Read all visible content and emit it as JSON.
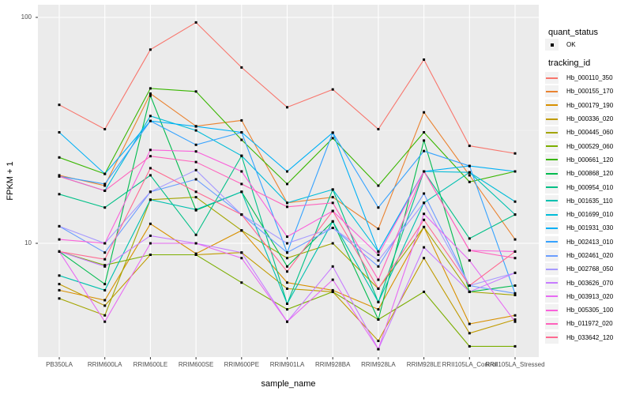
{
  "chart_data": {
    "type": "line",
    "title": "",
    "xlabel": "sample_name",
    "ylabel": "FPKM + 1",
    "y_scale": "log10",
    "y_ticks": [
      10,
      100
    ],
    "y_minor_ticks": [
      31.62
    ],
    "ylim": [
      3.1,
      114
    ],
    "grid": true,
    "panel_bg": "#EBEBEB",
    "grid_color": "#FFFFFF",
    "legend_position": "right",
    "marker": {
      "shape": "filled-square",
      "color": "#000000",
      "meaning": "quant_status OK"
    },
    "categories": [
      "PB350LA",
      "RRIM600LA",
      "RRIM600LE",
      "RRIM600SE",
      "RRIM600PE",
      "RRIM901LA",
      "RRIM928BA",
      "RRIM928LA",
      "RRIM928LE",
      "RRII105LA_Control",
      "RRII105LA_Stressed"
    ],
    "series": [
      {
        "name": "Hb_000110_350",
        "color": "#F8766D",
        "values": [
          41,
          32,
          72,
          95,
          60,
          40,
          48,
          32,
          65,
          27,
          25
        ]
      },
      {
        "name": "Hb_000155_170",
        "color": "#EA8331",
        "values": [
          20,
          18,
          46,
          33,
          35,
          15.1,
          16,
          11.6,
          38,
          20,
          10.4
        ]
      },
      {
        "name": "Hb_000179_190",
        "color": "#D89000",
        "values": [
          6.2,
          5.6,
          12.2,
          9.0,
          11.4,
          6.7,
          6.2,
          5.1,
          11.8,
          4.4,
          4.8
        ]
      },
      {
        "name": "Hb_000336_020",
        "color": "#C09B00",
        "values": [
          6.6,
          5.3,
          8.9,
          8.9,
          9.1,
          6.3,
          6.1,
          3.7,
          8.6,
          4.0,
          4.6
        ]
      },
      {
        "name": "Hb_000445_060",
        "color": "#A3A500",
        "values": [
          5.7,
          4.8,
          15.6,
          16.0,
          11.4,
          8.6,
          10.0,
          6.3,
          11.8,
          6.1,
          5.9
        ]
      },
      {
        "name": "Hb_000529_060",
        "color": "#7CAE00",
        "values": [
          9.2,
          8.0,
          8.9,
          8.9,
          6.7,
          5.1,
          6.1,
          4.6,
          6.1,
          3.5,
          3.5
        ]
      },
      {
        "name": "Hb_000661_120",
        "color": "#39B600",
        "values": [
          24,
          20.3,
          48.5,
          47,
          28.7,
          18.3,
          29.2,
          18,
          31,
          18.7,
          20.8
        ]
      },
      {
        "name": "Hb_000868_120",
        "color": "#00BB4E",
        "values": [
          9.2,
          6.6,
          45,
          14,
          16.9,
          7.9,
          12.5,
          4.6,
          28.5,
          6.1,
          6.5
        ]
      },
      {
        "name": "Hb_000954_010",
        "color": "#00C087",
        "values": [
          16.5,
          14.4,
          20,
          10.9,
          24.4,
          5.4,
          17.3,
          5.5,
          20.8,
          10.5,
          13.4
        ]
      },
      {
        "name": "Hb_001635_110",
        "color": "#00C0AF",
        "values": [
          7.2,
          6.2,
          15.6,
          14.1,
          16.9,
          5.4,
          12.5,
          5.5,
          15.1,
          20.6,
          13.4
        ]
      },
      {
        "name": "Hb_001699_010",
        "color": "#00BCD8",
        "values": [
          19.8,
          17.1,
          36.6,
          31.6,
          24.4,
          15.1,
          17.3,
          9.2,
          20.8,
          20.6,
          15.3
        ]
      },
      {
        "name": "Hb_001931_030",
        "color": "#00B0F6",
        "values": [
          31,
          20.3,
          34.8,
          32.9,
          31,
          20.8,
          30.9,
          9.2,
          20.8,
          22,
          20.8
        ]
      },
      {
        "name": "Hb_002413_010",
        "color": "#35A2FF",
        "values": [
          19.8,
          18.3,
          34.8,
          27.3,
          31,
          9.1,
          30.9,
          14.4,
          25.6,
          22,
          6.0
        ]
      },
      {
        "name": "Hb_002461_020",
        "color": "#6B9DFF",
        "values": [
          11.9,
          9.1,
          16.9,
          19.2,
          13.4,
          9.1,
          11.7,
          7.9,
          16.6,
          6.5,
          6.0
        ]
      },
      {
        "name": "Hb_002768_050",
        "color": "#A79AFF",
        "values": [
          11.9,
          10,
          16.9,
          21.1,
          13.4,
          10,
          11.7,
          8.4,
          15.1,
          6.5,
          7.4
        ]
      },
      {
        "name": "Hb_003626_070",
        "color": "#C77CFF",
        "values": [
          9.2,
          7.9,
          10.8,
          10,
          9.1,
          4.5,
          7.9,
          3.4,
          9.6,
          6.1,
          7.4
        ]
      },
      {
        "name": "Hb_003913_020",
        "color": "#E76BF3",
        "values": [
          9.2,
          4.5,
          10,
          10,
          8.6,
          4.5,
          6.9,
          3.4,
          13.5,
          8.4,
          4.5
        ]
      },
      {
        "name": "Hb_005305_100",
        "color": "#FA62DB",
        "values": [
          10.4,
          10,
          25.9,
          25.5,
          20.8,
          10.7,
          13.9,
          8.9,
          20.8,
          9.3,
          9.2
        ]
      },
      {
        "name": "Hb_011972_020",
        "color": "#FF62BC",
        "values": [
          19.8,
          17.1,
          24.3,
          22.9,
          18.3,
          14.5,
          15.1,
          6.9,
          20.8,
          9.3,
          8.6
        ]
      },
      {
        "name": "Hb_033642_120",
        "color": "#FF6A91",
        "values": [
          9.2,
          8.5,
          21.5,
          16.9,
          13.4,
          7.5,
          13.9,
          6.3,
          12.7,
          6.5,
          9.2
        ]
      }
    ]
  },
  "legend": {
    "quant_status": {
      "title": "quant_status",
      "items": [
        {
          "label": "OK"
        }
      ]
    },
    "tracking_id": {
      "title": "tracking_id"
    }
  }
}
